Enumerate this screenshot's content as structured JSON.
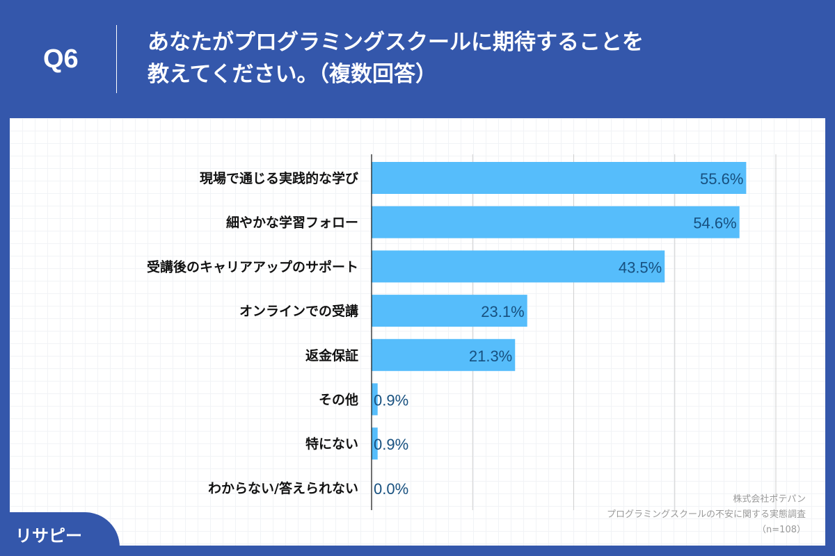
{
  "header": {
    "question": "Q6",
    "title_line1": "あなたがプログラミングスクールに期待することを",
    "title_line2": "教えてください。（複数回答）"
  },
  "chart_data": {
    "type": "bar",
    "orientation": "horizontal",
    "categories": [
      "現場で通じる実践的な学び",
      "細やかな学習フォロー",
      "受講後のキャリアアップのサポート",
      "オンラインでの受講",
      "返金保証",
      "その他",
      "特にない",
      "わからない/答えられない"
    ],
    "values": [
      55.6,
      54.6,
      43.5,
      23.1,
      21.3,
      0.9,
      0.9,
      0.0
    ],
    "data_labels": [
      "55.6%",
      "54.6%",
      "43.5%",
      "23.1%",
      "21.3%",
      "0.9%",
      "0.9%",
      "0.0%"
    ],
    "xlim": [
      0,
      60
    ],
    "grid": true,
    "bar_color": "#56bdfb",
    "label_color": "#17507f"
  },
  "source": {
    "company": "株式会社ポテパン",
    "survey": "プログラミングスクールの不安に関する実態調査",
    "n": "（n=108）"
  },
  "logo": {
    "text": "リサピー"
  },
  "colors": {
    "background": "#3457ab",
    "panel": "#ffffff"
  }
}
